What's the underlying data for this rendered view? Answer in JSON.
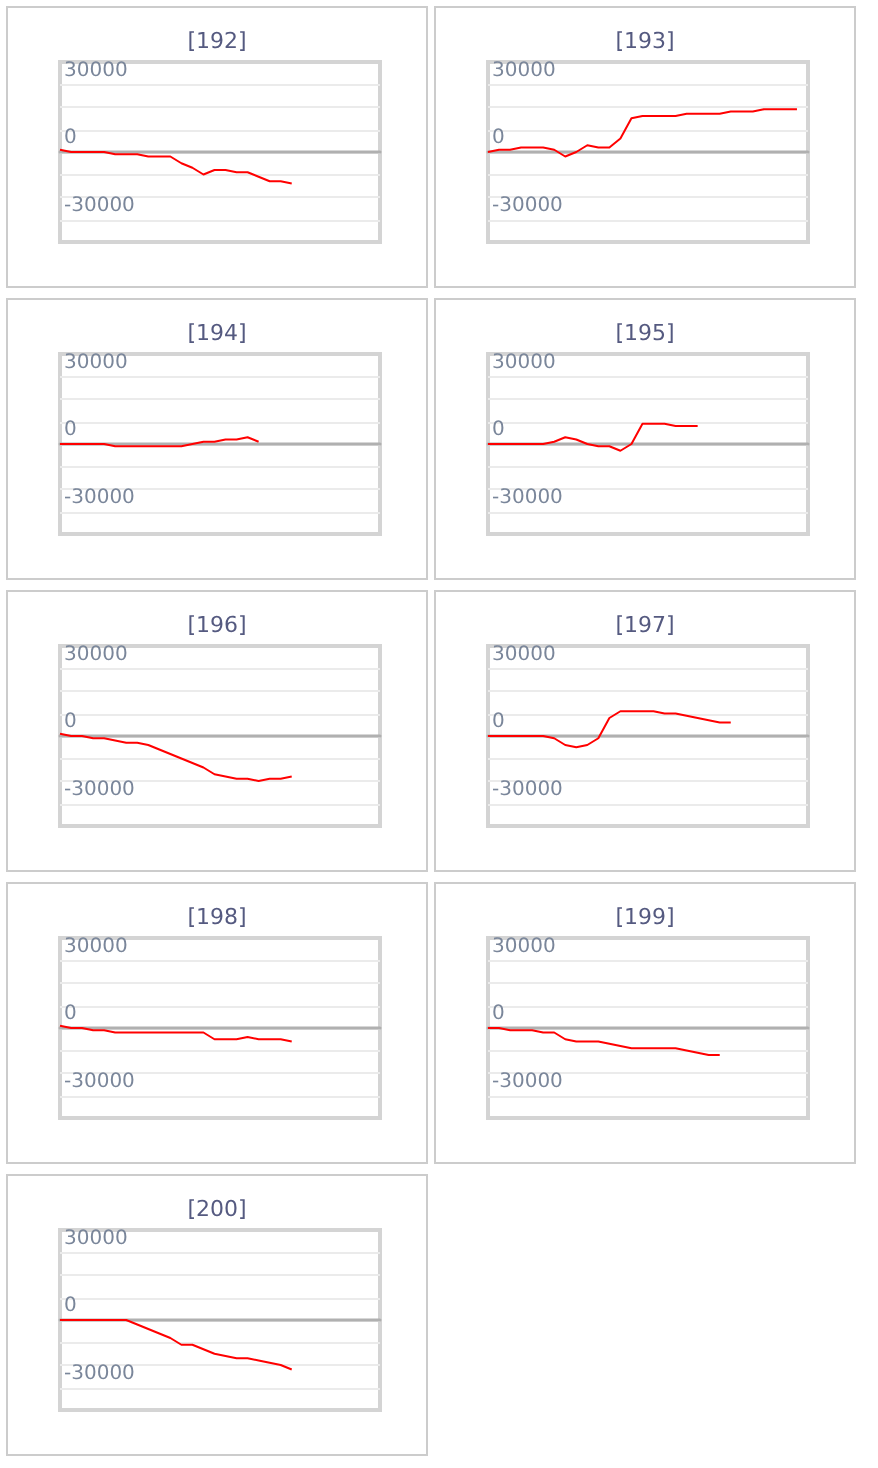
{
  "chart_data": [
    {
      "type": "line",
      "title": "[192]",
      "categories": [
        null,
        null,
        null,
        null,
        null,
        null,
        null,
        null,
        null,
        null,
        null,
        null,
        null,
        null,
        null,
        null,
        null,
        null,
        null,
        null,
        null,
        null,
        null,
        null,
        null,
        null,
        null,
        null,
        null,
        null
      ],
      "color": "#ff0000",
      "values": [
        1000,
        0,
        0,
        0,
        0,
        -1000,
        -1000,
        -1000,
        -2000,
        -2000,
        -2000,
        -5000,
        -7000,
        -10000,
        -8000,
        -8000,
        -9000,
        -9000,
        -11000,
        -13000,
        -13000,
        -14000,
        null,
        null,
        null,
        null,
        null,
        null,
        null,
        null
      ],
      "ylim": [
        -40000,
        40000
      ],
      "yticks": [
        30000,
        {
          "value": 20000,
          "label": null
        },
        {
          "value": 10000,
          "label": null
        },
        0,
        {
          "value": -10000,
          "label": null
        },
        {
          "value": -20000,
          "label": null
        },
        -30000
      ],
      "grid": "y",
      "tick_labels": "y"
    },
    {
      "type": "line",
      "title": "[193]",
      "categories": [
        null,
        null,
        null,
        null,
        null,
        null,
        null,
        null,
        null,
        null,
        null,
        null,
        null,
        null,
        null,
        null,
        null,
        null,
        null,
        null,
        null,
        null,
        null,
        null,
        null,
        null,
        null,
        null,
        null,
        null
      ],
      "color": "#ff0000",
      "values": [
        0,
        1000,
        1000,
        2000,
        2000,
        2000,
        1000,
        -2000,
        0,
        3000,
        2000,
        2000,
        6000,
        15000,
        16000,
        16000,
        16000,
        16000,
        17000,
        17000,
        17000,
        17000,
        18000,
        18000,
        18000,
        19000,
        19000,
        19000,
        19000,
        null
      ],
      "ylim": [
        -40000,
        40000
      ],
      "yticks": [
        30000,
        {
          "value": 20000,
          "label": null
        },
        {
          "value": 10000,
          "label": null
        },
        0,
        {
          "value": -10000,
          "label": null
        },
        {
          "value": -20000,
          "label": null
        },
        -30000
      ],
      "grid": "y",
      "tick_labels": "y"
    },
    {
      "type": "line",
      "title": "[194]",
      "categories": [
        null,
        null,
        null,
        null,
        null,
        null,
        null,
        null,
        null,
        null,
        null,
        null,
        null,
        null,
        null,
        null,
        null,
        null,
        null,
        null,
        null,
        null,
        null,
        null,
        null,
        null,
        null,
        null,
        null,
        null
      ],
      "color": "#ff0000",
      "values": [
        0,
        0,
        0,
        0,
        0,
        -1000,
        -1000,
        -1000,
        -1000,
        -1000,
        -1000,
        -1000,
        0,
        1000,
        1000,
        2000,
        2000,
        3000,
        1000,
        null,
        null,
        null,
        null,
        null,
        null,
        null,
        null,
        null,
        null,
        null
      ],
      "ylim": [
        -40000,
        40000
      ],
      "yticks": [
        30000,
        {
          "value": 20000,
          "label": null
        },
        {
          "value": 10000,
          "label": null
        },
        0,
        {
          "value": -10000,
          "label": null
        },
        {
          "value": -20000,
          "label": null
        },
        -30000
      ],
      "grid": "y",
      "tick_labels": "y"
    },
    {
      "type": "line",
      "title": "[195]",
      "categories": [
        null,
        null,
        null,
        null,
        null,
        null,
        null,
        null,
        null,
        null,
        null,
        null,
        null,
        null,
        null,
        null,
        null,
        null,
        null,
        null,
        null,
        null,
        null,
        null,
        null,
        null,
        null,
        null,
        null,
        null
      ],
      "color": "#ff0000",
      "values": [
        0,
        0,
        0,
        0,
        0,
        0,
        1000,
        3000,
        2000,
        0,
        -1000,
        -1000,
        -3000,
        0,
        9000,
        9000,
        9000,
        8000,
        8000,
        8000,
        null,
        null,
        null,
        null,
        null,
        null,
        null,
        null,
        null,
        null
      ],
      "ylim": [
        -40000,
        40000
      ],
      "yticks": [
        30000,
        {
          "value": 20000,
          "label": null
        },
        {
          "value": 10000,
          "label": null
        },
        0,
        {
          "value": -10000,
          "label": null
        },
        {
          "value": -20000,
          "label": null
        },
        -30000
      ],
      "grid": "y",
      "tick_labels": "y"
    },
    {
      "type": "line",
      "title": "[196]",
      "categories": [
        null,
        null,
        null,
        null,
        null,
        null,
        null,
        null,
        null,
        null,
        null,
        null,
        null,
        null,
        null,
        null,
        null,
        null,
        null,
        null,
        null,
        null,
        null,
        null,
        null,
        null,
        null,
        null,
        null,
        null
      ],
      "color": "#ff0000",
      "values": [
        1000,
        0,
        0,
        -1000,
        -1000,
        -2000,
        -3000,
        -3000,
        -4000,
        -6000,
        -8000,
        -10000,
        -12000,
        -14000,
        -17000,
        -18000,
        -19000,
        -19000,
        -20000,
        -19000,
        -19000,
        -18000,
        null,
        null,
        null,
        null,
        null,
        null,
        null,
        null
      ],
      "ylim": [
        -40000,
        40000
      ],
      "yticks": [
        30000,
        {
          "value": 20000,
          "label": null
        },
        {
          "value": 10000,
          "label": null
        },
        0,
        {
          "value": -10000,
          "label": null
        },
        {
          "value": -20000,
          "label": null
        },
        -30000
      ],
      "grid": "y",
      "tick_labels": "y"
    },
    {
      "type": "line",
      "title": "[197]",
      "categories": [
        null,
        null,
        null,
        null,
        null,
        null,
        null,
        null,
        null,
        null,
        null,
        null,
        null,
        null,
        null,
        null,
        null,
        null,
        null,
        null,
        null,
        null,
        null,
        null,
        null,
        null,
        null,
        null,
        null,
        null
      ],
      "color": "#ff0000",
      "values": [
        0,
        0,
        0,
        0,
        0,
        0,
        -1000,
        -4000,
        -5000,
        -4000,
        -1000,
        8000,
        11000,
        11000,
        11000,
        11000,
        10000,
        10000,
        9000,
        8000,
        7000,
        6000,
        6000,
        null,
        null,
        null,
        null,
        null,
        null,
        null
      ],
      "ylim": [
        -40000,
        40000
      ],
      "yticks": [
        30000,
        {
          "value": 20000,
          "label": null
        },
        {
          "value": 10000,
          "label": null
        },
        0,
        {
          "value": -10000,
          "label": null
        },
        {
          "value": -20000,
          "label": null
        },
        -30000
      ],
      "grid": "y",
      "tick_labels": "y"
    },
    {
      "type": "line",
      "title": "[198]",
      "categories": [
        null,
        null,
        null,
        null,
        null,
        null,
        null,
        null,
        null,
        null,
        null,
        null,
        null,
        null,
        null,
        null,
        null,
        null,
        null,
        null,
        null,
        null,
        null,
        null,
        null,
        null,
        null,
        null,
        null,
        null
      ],
      "color": "#ff0000",
      "values": [
        1000,
        0,
        0,
        -1000,
        -1000,
        -2000,
        -2000,
        -2000,
        -2000,
        -2000,
        -2000,
        -2000,
        -2000,
        -2000,
        -5000,
        -5000,
        -5000,
        -4000,
        -5000,
        -5000,
        -5000,
        -6000,
        null,
        null,
        null,
        null,
        null,
        null,
        null,
        null
      ],
      "ylim": [
        -40000,
        40000
      ],
      "yticks": [
        30000,
        {
          "value": 20000,
          "label": null
        },
        {
          "value": 10000,
          "label": null
        },
        0,
        {
          "value": -10000,
          "label": null
        },
        {
          "value": -20000,
          "label": null
        },
        -30000
      ],
      "grid": "y",
      "tick_labels": "y"
    },
    {
      "type": "line",
      "title": "[199]",
      "categories": [
        null,
        null,
        null,
        null,
        null,
        null,
        null,
        null,
        null,
        null,
        null,
        null,
        null,
        null,
        null,
        null,
        null,
        null,
        null,
        null,
        null,
        null,
        null,
        null,
        null,
        null,
        null,
        null,
        null,
        null
      ],
      "color": "#ff0000",
      "values": [
        0,
        0,
        -1000,
        -1000,
        -1000,
        -2000,
        -2000,
        -5000,
        -6000,
        -6000,
        -6000,
        -7000,
        -8000,
        -9000,
        -9000,
        -9000,
        -9000,
        -9000,
        -10000,
        -11000,
        -12000,
        -12000,
        null,
        null,
        null,
        null,
        null,
        null,
        null,
        null
      ],
      "ylim": [
        -40000,
        40000
      ],
      "yticks": [
        30000,
        {
          "value": 20000,
          "label": null
        },
        {
          "value": 10000,
          "label": null
        },
        0,
        {
          "value": -10000,
          "label": null
        },
        {
          "value": -20000,
          "label": null
        },
        -30000
      ],
      "grid": "y",
      "tick_labels": "y"
    },
    {
      "type": "line",
      "title": "[200]",
      "categories": [
        null,
        null,
        null,
        null,
        null,
        null,
        null,
        null,
        null,
        null,
        null,
        null,
        null,
        null,
        null,
        null,
        null,
        null,
        null,
        null,
        null,
        null,
        null,
        null,
        null,
        null,
        null,
        null,
        null,
        null
      ],
      "color": "#ff0000",
      "values": [
        0,
        0,
        0,
        0,
        0,
        0,
        0,
        -2000,
        -4000,
        -6000,
        -8000,
        -11000,
        -11000,
        -13000,
        -15000,
        -16000,
        -17000,
        -17000,
        -18000,
        -19000,
        -20000,
        -22000,
        null,
        null,
        null,
        null,
        null,
        null,
        null,
        null
      ],
      "ylim": [
        -40000,
        40000
      ],
      "yticks": [
        30000,
        {
          "value": 20000,
          "label": null
        },
        {
          "value": 10000,
          "label": null
        },
        0,
        {
          "value": -10000,
          "label": null
        },
        {
          "value": -20000,
          "label": null
        },
        -30000
      ],
      "grid": "y",
      "tick_labels": "y"
    }
  ]
}
